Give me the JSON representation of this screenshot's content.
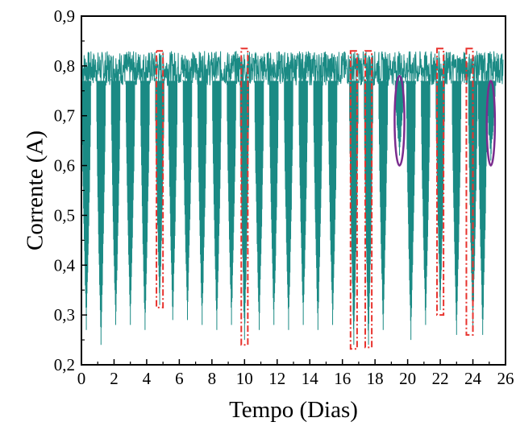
{
  "chart_data": {
    "type": "line",
    "xlabel": "Tempo (Dias)",
    "ylabel": "Corrente (A)",
    "xlim": [
      0,
      26
    ],
    "ylim": [
      0.2,
      0.9
    ],
    "x_ticks": [
      "0",
      "2",
      "4",
      "6",
      "8",
      "10",
      "12",
      "14",
      "16",
      "18",
      "20",
      "22",
      "24",
      "26"
    ],
    "y_ticks": [
      "0,2",
      "0,3",
      "0,4",
      "0,5",
      "0,6",
      "0,7",
      "0,8",
      "0,9"
    ],
    "grid": false,
    "series_color": "#1a8a84",
    "series": [
      {
        "band_min": 0.76,
        "band_max": 0.83,
        "dips": [
          {
            "day": 0.3,
            "min": 0.27
          },
          {
            "day": 1.2,
            "min": 0.24
          },
          {
            "day": 2.1,
            "min": 0.28
          },
          {
            "day": 3.0,
            "min": 0.28
          },
          {
            "day": 3.9,
            "min": 0.27
          },
          {
            "day": 4.8,
            "min": 0.32
          },
          {
            "day": 5.6,
            "min": 0.29
          },
          {
            "day": 6.5,
            "min": 0.29
          },
          {
            "day": 7.4,
            "min": 0.28
          },
          {
            "day": 8.3,
            "min": 0.27
          },
          {
            "day": 9.2,
            "min": 0.28
          },
          {
            "day": 10.0,
            "min": 0.25
          },
          {
            "day": 10.9,
            "min": 0.27
          },
          {
            "day": 11.8,
            "min": 0.28
          },
          {
            "day": 12.7,
            "min": 0.27
          },
          {
            "day": 13.6,
            "min": 0.28
          },
          {
            "day": 14.5,
            "min": 0.27
          },
          {
            "day": 15.4,
            "min": 0.28
          },
          {
            "day": 16.7,
            "min": 0.24
          },
          {
            "day": 17.6,
            "min": 0.24
          },
          {
            "day": 18.5,
            "min": 0.27
          },
          {
            "day": 19.5,
            "min": 0.62
          },
          {
            "day": 20.2,
            "min": 0.25
          },
          {
            "day": 21.1,
            "min": 0.28
          },
          {
            "day": 22.0,
            "min": 0.31
          },
          {
            "day": 23.0,
            "min": 0.26
          },
          {
            "day": 24.0,
            "min": 0.27
          },
          {
            "day": 24.6,
            "min": 0.26
          },
          {
            "day": 25.1,
            "min": 0.61
          }
        ]
      }
    ],
    "annotation_color_rect": "#e8332e",
    "annotation_color_ellipse": "#7a2c8e",
    "rect_annotations": [
      {
        "x0": 4.6,
        "x1": 5.0,
        "y0": 0.315,
        "y1": 0.83
      },
      {
        "x0": 9.8,
        "x1": 10.2,
        "y0": 0.24,
        "y1": 0.835
      },
      {
        "x0": 16.5,
        "x1": 16.9,
        "y0": 0.232,
        "y1": 0.83
      },
      {
        "x0": 17.4,
        "x1": 17.8,
        "y0": 0.235,
        "y1": 0.83
      },
      {
        "x0": 21.8,
        "x1": 22.2,
        "y0": 0.3,
        "y1": 0.835
      },
      {
        "x0": 23.6,
        "x1": 24.0,
        "y0": 0.26,
        "y1": 0.835
      }
    ],
    "ellipse_annotations": [
      {
        "cx": 19.5,
        "cy": 0.69,
        "rx": 0.3,
        "ry": 0.09
      },
      {
        "cx": 25.1,
        "cy": 0.685,
        "rx": 0.25,
        "ry": 0.085
      }
    ]
  }
}
